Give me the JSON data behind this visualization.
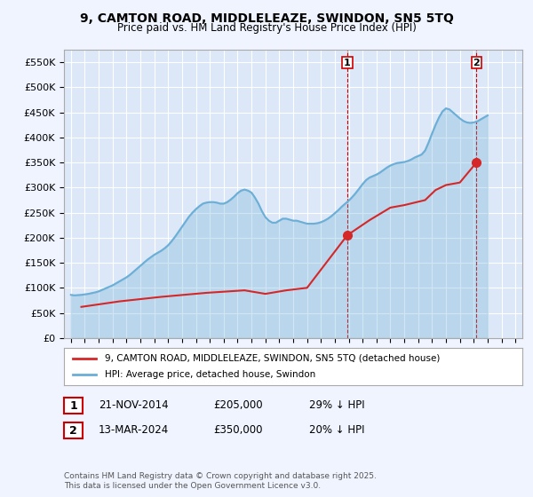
{
  "title": "9, CAMTON ROAD, MIDDLELEAZE, SWINDON, SN5 5TQ",
  "subtitle": "Price paid vs. HM Land Registry's House Price Index (HPI)",
  "background_color": "#f0f4ff",
  "plot_bg_color": "#dce8f8",
  "grid_color": "#ffffff",
  "ylabel": "",
  "xlabel": "",
  "ylim": [
    0,
    575000
  ],
  "yticks": [
    0,
    50000,
    100000,
    150000,
    200000,
    250000,
    300000,
    350000,
    400000,
    450000,
    500000,
    550000
  ],
  "ytick_labels": [
    "£0",
    "£50K",
    "£100K",
    "£150K",
    "£200K",
    "£250K",
    "£300K",
    "£350K",
    "£400K",
    "£450K",
    "£500K",
    "£550K"
  ],
  "xlim_start": 1994.5,
  "xlim_end": 2027.5,
  "xticks": [
    1995,
    1996,
    1997,
    1998,
    1999,
    2000,
    2001,
    2002,
    2003,
    2004,
    2005,
    2006,
    2007,
    2008,
    2009,
    2010,
    2011,
    2012,
    2013,
    2014,
    2015,
    2016,
    2017,
    2018,
    2019,
    2020,
    2021,
    2022,
    2023,
    2024,
    2025,
    2026,
    2027
  ],
  "hpi_color": "#6baed6",
  "price_color": "#d62728",
  "marker1_color": "#d62728",
  "marker2_color": "#d62728",
  "sale1_date": 2014.9,
  "sale1_price": 205000,
  "sale1_label": "1",
  "sale2_date": 2024.2,
  "sale2_price": 350000,
  "sale2_label": "2",
  "legend_entry1": "9, CAMTON ROAD, MIDDLELEAZE, SWINDON, SN5 5TQ (detached house)",
  "legend_entry2": "HPI: Average price, detached house, Swindon",
  "annotation1_box": "1",
  "annotation1_date": "21-NOV-2014",
  "annotation1_price": "£205,000",
  "annotation1_hpi": "29% ↓ HPI",
  "annotation2_box": "2",
  "annotation2_date": "13-MAR-2024",
  "annotation2_price": "£350,000",
  "annotation2_hpi": "20% ↓ HPI",
  "footer": "Contains HM Land Registry data © Crown copyright and database right 2025.\nThis data is licensed under the Open Government Licence v3.0.",
  "hpi_data_x": [
    1995.0,
    1995.25,
    1995.5,
    1995.75,
    1996.0,
    1996.25,
    1996.5,
    1996.75,
    1997.0,
    1997.25,
    1997.5,
    1997.75,
    1998.0,
    1998.25,
    1998.5,
    1998.75,
    1999.0,
    1999.25,
    1999.5,
    1999.75,
    2000.0,
    2000.25,
    2000.5,
    2000.75,
    2001.0,
    2001.25,
    2001.5,
    2001.75,
    2002.0,
    2002.25,
    2002.5,
    2002.75,
    2003.0,
    2003.25,
    2003.5,
    2003.75,
    2004.0,
    2004.25,
    2004.5,
    2004.75,
    2005.0,
    2005.25,
    2005.5,
    2005.75,
    2006.0,
    2006.25,
    2006.5,
    2006.75,
    2007.0,
    2007.25,
    2007.5,
    2007.75,
    2008.0,
    2008.25,
    2008.5,
    2008.75,
    2009.0,
    2009.25,
    2009.5,
    2009.75,
    2010.0,
    2010.25,
    2010.5,
    2010.75,
    2011.0,
    2011.25,
    2011.5,
    2011.75,
    2012.0,
    2012.25,
    2012.5,
    2012.75,
    2013.0,
    2013.25,
    2013.5,
    2013.75,
    2014.0,
    2014.25,
    2014.5,
    2014.75,
    2015.0,
    2015.25,
    2015.5,
    2015.75,
    2016.0,
    2016.25,
    2016.5,
    2016.75,
    2017.0,
    2017.25,
    2017.5,
    2017.75,
    2018.0,
    2018.25,
    2018.5,
    2018.75,
    2019.0,
    2019.25,
    2019.5,
    2019.75,
    2020.0,
    2020.25,
    2020.5,
    2020.75,
    2021.0,
    2021.25,
    2021.5,
    2021.75,
    2022.0,
    2022.25,
    2022.5,
    2022.75,
    2023.0,
    2023.25,
    2023.5,
    2023.75,
    2024.0,
    2024.25,
    2024.5,
    2024.75,
    2025.0
  ],
  "hpi_data_y": [
    86000,
    85000,
    85500,
    86000,
    87000,
    88000,
    89500,
    91000,
    93000,
    96000,
    99000,
    102000,
    105000,
    109000,
    113000,
    117000,
    121000,
    126000,
    132000,
    138000,
    144000,
    150000,
    156000,
    161000,
    166000,
    170000,
    174000,
    179000,
    185000,
    193000,
    202000,
    212000,
    222000,
    232000,
    242000,
    250000,
    257000,
    263000,
    268000,
    270000,
    271000,
    271000,
    270000,
    268000,
    268000,
    271000,
    276000,
    282000,
    289000,
    294000,
    296000,
    294000,
    290000,
    280000,
    268000,
    253000,
    241000,
    234000,
    230000,
    230000,
    234000,
    238000,
    238000,
    236000,
    234000,
    234000,
    232000,
    230000,
    228000,
    228000,
    228000,
    229000,
    231000,
    234000,
    238000,
    243000,
    249000,
    255000,
    262000,
    268000,
    274000,
    281000,
    289000,
    298000,
    307000,
    315000,
    320000,
    323000,
    326000,
    330000,
    335000,
    340000,
    344000,
    347000,
    349000,
    350000,
    351000,
    353000,
    356000,
    360000,
    363000,
    366000,
    374000,
    390000,
    408000,
    425000,
    440000,
    452000,
    458000,
    456000,
    450000,
    444000,
    438000,
    433000,
    430000,
    429000,
    430000,
    432000,
    436000,
    440000,
    444000
  ],
  "price_data_x": [
    1995.75,
    1998.5,
    2001.5,
    2004.75,
    2007.5,
    2009.0,
    2010.5,
    2012.0,
    2014.9,
    2016.5,
    2018.0,
    2019.0,
    2020.5,
    2021.25,
    2022.0,
    2023.0,
    2024.2
  ],
  "price_data_y": [
    62000,
    73000,
    82000,
    90000,
    95000,
    88000,
    95000,
    100000,
    205000,
    235000,
    260000,
    265000,
    275000,
    295000,
    305000,
    310000,
    350000
  ]
}
